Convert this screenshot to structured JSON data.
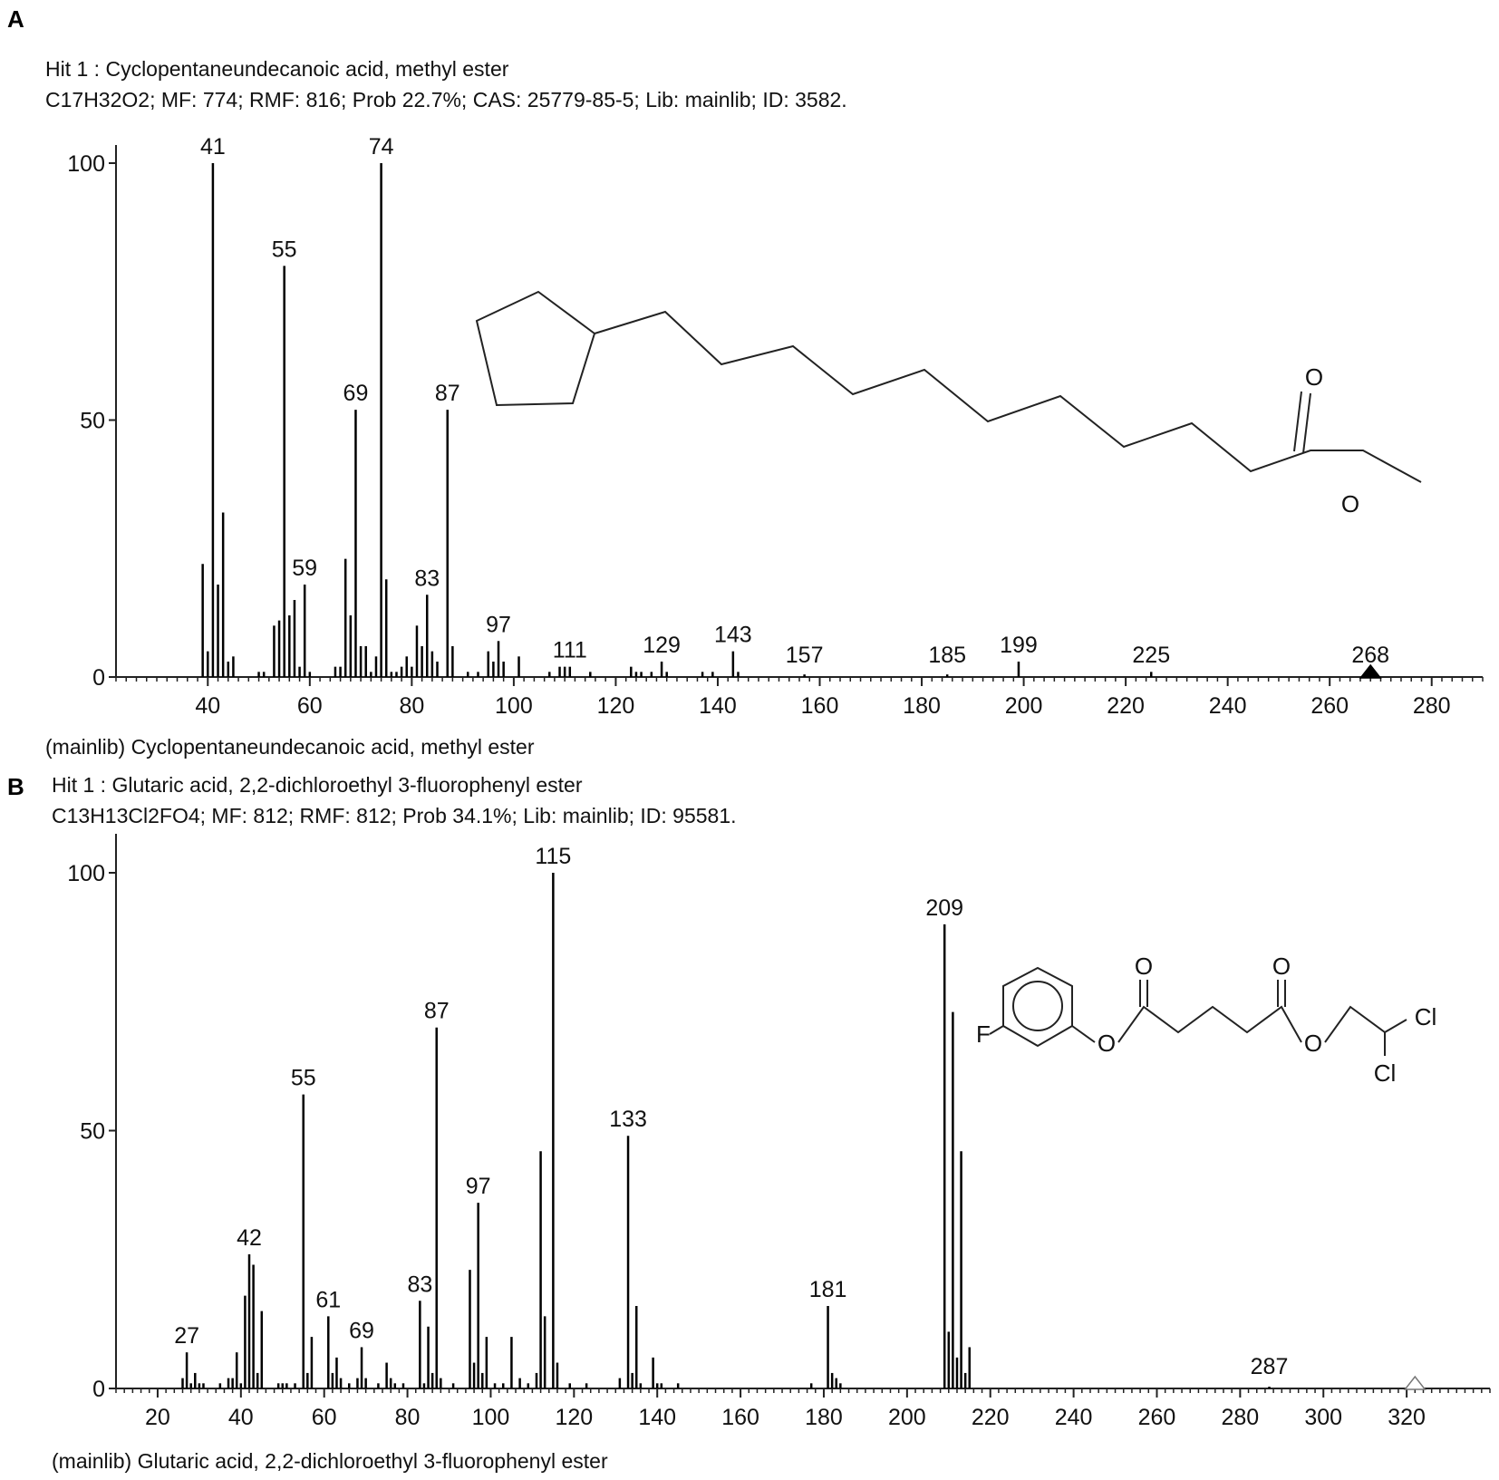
{
  "chart_data": [
    {
      "panel_label": "A",
      "type": "bar",
      "title": "Hit 1 : Cyclopentaneundecanoic acid, methyl ester",
      "subtitle": "C17H32O2; MF: 774; RMF: 816; Prob 22.7%; CAS: 25779-85-5; Lib: mainlib; ID: 3582.",
      "footer": "(mainlib) Cyclopentaneundecanoic acid, methyl ester",
      "xlim": [
        22,
        290
      ],
      "ylim": [
        0,
        100
      ],
      "xticks": [
        40,
        60,
        80,
        100,
        120,
        140,
        160,
        180,
        200,
        220,
        240,
        260,
        280
      ],
      "yticks": [
        0,
        50,
        100
      ],
      "grid": false,
      "molecular_ion": {
        "mz": 268,
        "marker": "filled-triangle"
      },
      "peaks": [
        {
          "mz": 39,
          "i": 22
        },
        {
          "mz": 40,
          "i": 5
        },
        {
          "mz": 41,
          "i": 100,
          "label": "41"
        },
        {
          "mz": 42,
          "i": 18
        },
        {
          "mz": 43,
          "i": 32
        },
        {
          "mz": 44,
          "i": 3
        },
        {
          "mz": 45,
          "i": 4
        },
        {
          "mz": 50,
          "i": 1
        },
        {
          "mz": 51,
          "i": 1
        },
        {
          "mz": 53,
          "i": 10
        },
        {
          "mz": 54,
          "i": 11
        },
        {
          "mz": 55,
          "i": 80,
          "label": "55"
        },
        {
          "mz": 56,
          "i": 12
        },
        {
          "mz": 57,
          "i": 15
        },
        {
          "mz": 58,
          "i": 2
        },
        {
          "mz": 59,
          "i": 18,
          "label": "59"
        },
        {
          "mz": 60,
          "i": 1
        },
        {
          "mz": 65,
          "i": 2
        },
        {
          "mz": 66,
          "i": 2
        },
        {
          "mz": 67,
          "i": 23
        },
        {
          "mz": 68,
          "i": 12
        },
        {
          "mz": 69,
          "i": 52,
          "label": "69"
        },
        {
          "mz": 70,
          "i": 6
        },
        {
          "mz": 71,
          "i": 6
        },
        {
          "mz": 72,
          "i": 1
        },
        {
          "mz": 73,
          "i": 4
        },
        {
          "mz": 74,
          "i": 100,
          "label": "74"
        },
        {
          "mz": 75,
          "i": 19
        },
        {
          "mz": 76,
          "i": 1
        },
        {
          "mz": 77,
          "i": 1
        },
        {
          "mz": 78,
          "i": 2
        },
        {
          "mz": 79,
          "i": 4
        },
        {
          "mz": 80,
          "i": 2
        },
        {
          "mz": 81,
          "i": 10
        },
        {
          "mz": 82,
          "i": 6
        },
        {
          "mz": 83,
          "i": 16,
          "label": "83"
        },
        {
          "mz": 84,
          "i": 5
        },
        {
          "mz": 85,
          "i": 3
        },
        {
          "mz": 87,
          "i": 52,
          "label": "87"
        },
        {
          "mz": 88,
          "i": 6
        },
        {
          "mz": 91,
          "i": 1
        },
        {
          "mz": 93,
          "i": 1
        },
        {
          "mz": 95,
          "i": 5
        },
        {
          "mz": 96,
          "i": 3
        },
        {
          "mz": 97,
          "i": 7,
          "label": "97"
        },
        {
          "mz": 98,
          "i": 3
        },
        {
          "mz": 101,
          "i": 4
        },
        {
          "mz": 107,
          "i": 1
        },
        {
          "mz": 109,
          "i": 2
        },
        {
          "mz": 110,
          "i": 2
        },
        {
          "mz": 111,
          "i": 2,
          "label": "111"
        },
        {
          "mz": 115,
          "i": 1
        },
        {
          "mz": 123,
          "i": 2
        },
        {
          "mz": 124,
          "i": 1
        },
        {
          "mz": 125,
          "i": 1
        },
        {
          "mz": 127,
          "i": 1
        },
        {
          "mz": 129,
          "i": 3,
          "label": "129"
        },
        {
          "mz": 130,
          "i": 1
        },
        {
          "mz": 137,
          "i": 1
        },
        {
          "mz": 139,
          "i": 1
        },
        {
          "mz": 143,
          "i": 5,
          "label": "143"
        },
        {
          "mz": 144,
          "i": 1
        },
        {
          "mz": 157,
          "i": 0.5,
          "label": "157"
        },
        {
          "mz": 185,
          "i": 0.5,
          "label": "185"
        },
        {
          "mz": 199,
          "i": 3,
          "label": "199"
        },
        {
          "mz": 225,
          "i": 1,
          "label": "225"
        },
        {
          "mz": 268,
          "i": 0.5,
          "label": "268"
        }
      ]
    },
    {
      "panel_label": "B",
      "type": "bar",
      "title": "Hit 1 : Glutaric acid, 2,2-dichloroethyl 3-fluorophenyl ester",
      "subtitle": "C13H13Cl2FO4; MF: 812; RMF: 812; Prob 34.1%; Lib: mainlib; ID: 95581.",
      "footer": "(mainlib) Glutaric acid, 2,2-dichloroethyl 3-fluorophenyl ester",
      "xlim": [
        10,
        340
      ],
      "ylim": [
        0,
        100
      ],
      "xticks": [
        20,
        40,
        60,
        80,
        100,
        120,
        140,
        160,
        180,
        200,
        220,
        240,
        260,
        280,
        300,
        320
      ],
      "yticks": [
        0,
        50,
        100
      ],
      "grid": false,
      "molecular_ion": {
        "mz": 322,
        "marker": "open-triangle"
      },
      "peaks": [
        {
          "mz": 26,
          "i": 2
        },
        {
          "mz": 27,
          "i": 7,
          "label": "27"
        },
        {
          "mz": 28,
          "i": 1
        },
        {
          "mz": 29,
          "i": 3
        },
        {
          "mz": 30,
          "i": 1
        },
        {
          "mz": 31,
          "i": 1
        },
        {
          "mz": 35,
          "i": 1
        },
        {
          "mz": 37,
          "i": 2
        },
        {
          "mz": 38,
          "i": 2
        },
        {
          "mz": 39,
          "i": 7
        },
        {
          "mz": 40,
          "i": 1
        },
        {
          "mz": 41,
          "i": 18
        },
        {
          "mz": 42,
          "i": 26,
          "label": "42"
        },
        {
          "mz": 43,
          "i": 24
        },
        {
          "mz": 44,
          "i": 3
        },
        {
          "mz": 45,
          "i": 15
        },
        {
          "mz": 49,
          "i": 1
        },
        {
          "mz": 50,
          "i": 1
        },
        {
          "mz": 51,
          "i": 1
        },
        {
          "mz": 53,
          "i": 1
        },
        {
          "mz": 55,
          "i": 57,
          "label": "55"
        },
        {
          "mz": 56,
          "i": 3
        },
        {
          "mz": 57,
          "i": 10
        },
        {
          "mz": 61,
          "i": 14,
          "label": "61"
        },
        {
          "mz": 62,
          "i": 3
        },
        {
          "mz": 63,
          "i": 6
        },
        {
          "mz": 64,
          "i": 2
        },
        {
          "mz": 66,
          "i": 1
        },
        {
          "mz": 68,
          "i": 2
        },
        {
          "mz": 69,
          "i": 8,
          "label": "69"
        },
        {
          "mz": 70,
          "i": 2
        },
        {
          "mz": 73,
          "i": 1
        },
        {
          "mz": 75,
          "i": 5
        },
        {
          "mz": 76,
          "i": 2
        },
        {
          "mz": 77,
          "i": 1
        },
        {
          "mz": 79,
          "i": 1
        },
        {
          "mz": 83,
          "i": 17,
          "label": "83"
        },
        {
          "mz": 84,
          "i": 1
        },
        {
          "mz": 85,
          "i": 12
        },
        {
          "mz": 86,
          "i": 3
        },
        {
          "mz": 87,
          "i": 70,
          "label": "87"
        },
        {
          "mz": 88,
          "i": 2
        },
        {
          "mz": 91,
          "i": 1
        },
        {
          "mz": 95,
          "i": 23
        },
        {
          "mz": 96,
          "i": 5
        },
        {
          "mz": 97,
          "i": 36,
          "label": "97"
        },
        {
          "mz": 98,
          "i": 3
        },
        {
          "mz": 99,
          "i": 10
        },
        {
          "mz": 101,
          "i": 1
        },
        {
          "mz": 103,
          "i": 1
        },
        {
          "mz": 105,
          "i": 10
        },
        {
          "mz": 107,
          "i": 2
        },
        {
          "mz": 109,
          "i": 1
        },
        {
          "mz": 111,
          "i": 3
        },
        {
          "mz": 112,
          "i": 46
        },
        {
          "mz": 113,
          "i": 14
        },
        {
          "mz": 115,
          "i": 100,
          "label": "115"
        },
        {
          "mz": 116,
          "i": 5
        },
        {
          "mz": 119,
          "i": 1
        },
        {
          "mz": 123,
          "i": 1
        },
        {
          "mz": 131,
          "i": 2
        },
        {
          "mz": 133,
          "i": 49,
          "label": "133"
        },
        {
          "mz": 134,
          "i": 3
        },
        {
          "mz": 135,
          "i": 16
        },
        {
          "mz": 136,
          "i": 1
        },
        {
          "mz": 139,
          "i": 6
        },
        {
          "mz": 140,
          "i": 1
        },
        {
          "mz": 141,
          "i": 1
        },
        {
          "mz": 145,
          "i": 1
        },
        {
          "mz": 177,
          "i": 1
        },
        {
          "mz": 181,
          "i": 16,
          "label": "181"
        },
        {
          "mz": 182,
          "i": 3
        },
        {
          "mz": 183,
          "i": 2
        },
        {
          "mz": 184,
          "i": 1
        },
        {
          "mz": 209,
          "i": 90,
          "label": "209"
        },
        {
          "mz": 210,
          "i": 11
        },
        {
          "mz": 211,
          "i": 73
        },
        {
          "mz": 212,
          "i": 6
        },
        {
          "mz": 213,
          "i": 46
        },
        {
          "mz": 214,
          "i": 3
        },
        {
          "mz": 215,
          "i": 8
        },
        {
          "mz": 287,
          "i": 0.3,
          "label": "287"
        }
      ]
    }
  ],
  "structures": {
    "A": {
      "atom_labels": [
        "O",
        "O"
      ]
    },
    "B": {
      "atom_labels": [
        "F",
        "O",
        "O",
        "O",
        "O",
        "Cl",
        "Cl"
      ]
    }
  }
}
